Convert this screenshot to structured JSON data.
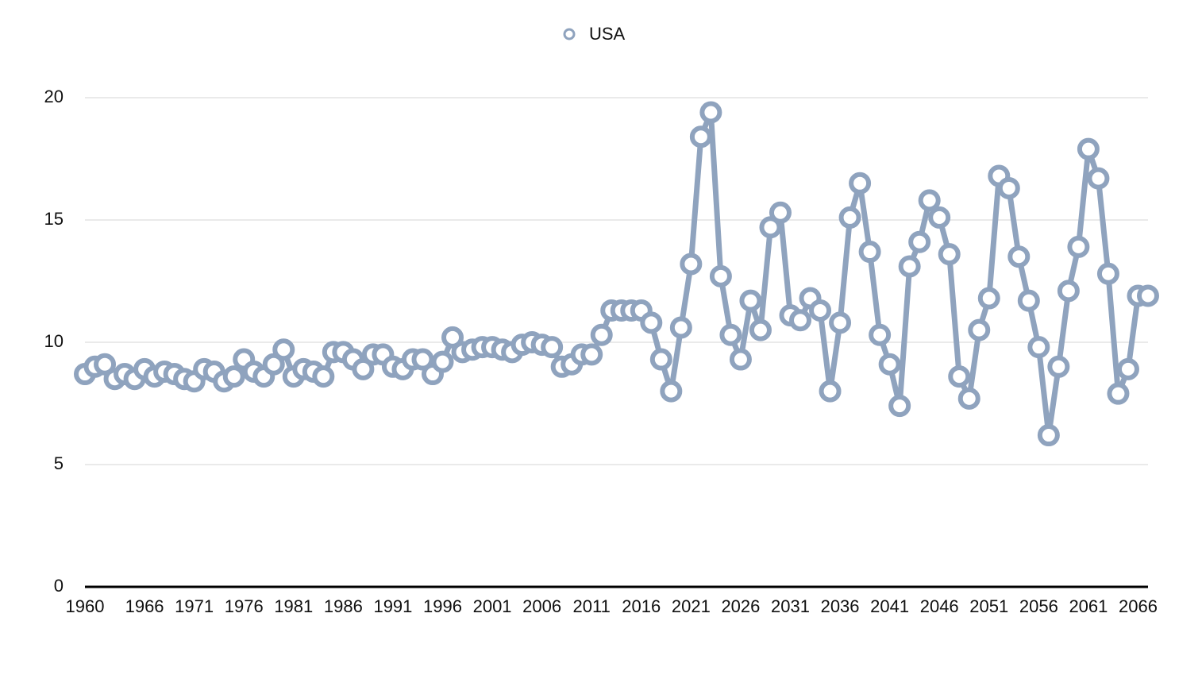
{
  "chart_data": {
    "type": "line",
    "x": [
      1960,
      1961,
      1962,
      1963,
      1964,
      1965,
      1966,
      1967,
      1968,
      1969,
      1970,
      1971,
      1972,
      1973,
      1974,
      1975,
      1976,
      1977,
      1978,
      1979,
      1980,
      1981,
      1982,
      1983,
      1984,
      1985,
      1986,
      1987,
      1988,
      1989,
      1990,
      1991,
      1992,
      1993,
      1994,
      1995,
      1996,
      1997,
      1998,
      1999,
      2000,
      2001,
      2002,
      2003,
      2004,
      2005,
      2006,
      2007,
      2008,
      2009,
      2010,
      2011,
      2012,
      2013,
      2014,
      2015,
      2016,
      2017,
      2018,
      2019,
      2020,
      2021,
      2022,
      2023,
      2024,
      2025,
      2026,
      2027,
      2028,
      2029,
      2030,
      2031,
      2032,
      2033,
      2034,
      2035,
      2036,
      2037,
      2038,
      2039,
      2040,
      2041,
      2042,
      2043,
      2044,
      2045,
      2046,
      2047,
      2048,
      2049,
      2050,
      2051,
      2052,
      2053,
      2054,
      2055,
      2056,
      2057,
      2058,
      2059,
      2060,
      2061,
      2062,
      2063,
      2064,
      2065,
      2066,
      2067
    ],
    "series": [
      {
        "name": "USA",
        "color": "#8fa3be",
        "values": [
          8.7,
          9.0,
          9.1,
          8.5,
          8.7,
          8.5,
          8.9,
          8.6,
          8.8,
          8.7,
          8.5,
          8.4,
          8.9,
          8.8,
          8.4,
          8.6,
          9.3,
          8.8,
          8.6,
          9.1,
          9.7,
          8.6,
          8.9,
          8.8,
          8.6,
          9.6,
          9.6,
          9.3,
          8.9,
          9.5,
          9.5,
          9.0,
          8.9,
          9.3,
          9.3,
          8.7,
          9.2,
          10.2,
          9.6,
          9.7,
          9.8,
          9.8,
          9.7,
          9.6,
          9.9,
          10.0,
          9.9,
          9.8,
          9.0,
          9.1,
          9.5,
          9.5,
          10.3,
          11.3,
          11.3,
          11.3,
          11.3,
          10.8,
          9.3,
          8.0,
          10.6,
          13.2,
          18.4,
          19.4,
          12.7,
          10.3,
          9.3,
          11.7,
          10.5,
          14.7,
          15.3,
          11.1,
          10.9,
          11.8,
          11.3,
          8.0,
          10.8,
          15.1,
          16.5,
          13.7,
          10.3,
          9.1,
          7.4,
          13.1,
          14.1,
          15.8,
          15.1,
          13.6,
          8.6,
          7.7,
          10.5,
          11.8,
          16.8,
          16.3,
          13.5,
          11.7,
          9.8,
          6.2,
          9.0,
          12.1,
          13.9,
          17.9,
          16.7,
          12.8,
          7.9,
          8.9,
          11.9,
          11.9
        ]
      }
    ],
    "xlim": [
      1960,
      2067
    ],
    "xticks": [
      1960,
      1966,
      1971,
      1976,
      1981,
      1986,
      1991,
      1996,
      2001,
      2006,
      2011,
      2016,
      2021,
      2026,
      2031,
      2036,
      2041,
      2046,
      2051,
      2056,
      2061,
      2066
    ],
    "ylim": [
      0,
      20
    ],
    "yticks": [
      0,
      5,
      10,
      15,
      20
    ],
    "grid": true,
    "legend": "top"
  }
}
